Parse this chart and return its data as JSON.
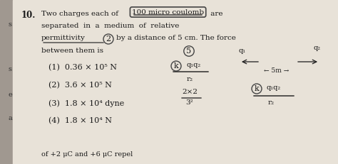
{
  "background_color": "#cdc8bc",
  "left_panel_color": "#e8e2d8",
  "font_color": "#1a1a1a",
  "left_bar_color": "#b8b2a8",
  "question_number": "10.",
  "q_line1_a": "Two charges each of ",
  "q_line1_circle": "100 micro coulomb",
  "q_line1_b": " are",
  "q_line2": "separated  in  a  medium  of  relative",
  "q_line3_a": "permittivity",
  "q_line3_circle2": "2",
  "q_line3_b": "by a distance of 5 cm. The force",
  "q_line4": "between them is",
  "options": [
    "(1)  0.36 × 10⁵ N",
    "(2)  3.6 × 10⁵ N",
    "(3)  1.8 × 10⁴ dyne",
    "(4)  1.8 × 10⁴ N"
  ],
  "side_labels": [
    [
      "a",
      0.72
    ],
    [
      "e",
      0.58
    ],
    [
      "s",
      0.42
    ],
    [
      "s",
      0.15
    ]
  ],
  "bottom_text": "of +2 μC and +6 μC repel"
}
